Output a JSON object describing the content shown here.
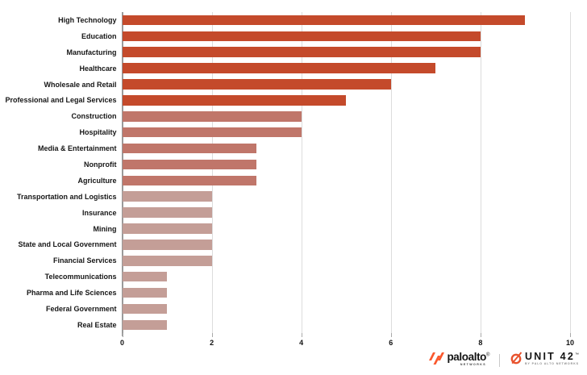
{
  "chart_data": {
    "type": "bar",
    "orientation": "horizontal",
    "title": "",
    "xlabel": "",
    "ylabel": "",
    "xlim": [
      0,
      10
    ],
    "xticks": [
      0,
      2,
      4,
      6,
      8,
      10
    ],
    "grid": true,
    "legend": "none",
    "categories": [
      "High Technology",
      "Education",
      "Manufacturing",
      "Healthcare",
      "Wholesale and Retail",
      "Professional and Legal Services",
      "Construction",
      "Hospitality",
      "Media & Entertainment",
      "Nonprofit",
      "Agriculture",
      "Transportation and Logistics",
      "Insurance",
      "Mining",
      "State and Local Government",
      "Financial Services",
      "Telecommunications",
      "Pharma and Life Sciences",
      "Federal Government",
      "Real Estate"
    ],
    "values": [
      9,
      8,
      8,
      7,
      6,
      5,
      4,
      4,
      3,
      3,
      3,
      2,
      2,
      2,
      2,
      2,
      1,
      1,
      1,
      1
    ],
    "bar_colors": [
      "#C44A2B",
      "#C44A2B",
      "#C44A2B",
      "#C44A2B",
      "#C44A2B",
      "#C44A2B",
      "#C0766A",
      "#C0766A",
      "#C0766A",
      "#C0766A",
      "#C0766A",
      "#C49E97",
      "#C49E97",
      "#C49E97",
      "#C49E97",
      "#C49E97",
      "#C49E97",
      "#C49E97",
      "#C49E97",
      "#C49E97"
    ],
    "color_tiers": {
      "high_values_5_to_9": "#C44A2B",
      "mid_values_3_to_4": "#C0766A",
      "low_values_1_to_2": "#C49E97"
    },
    "gridline_color": "#DCDCDC",
    "axis_line_color": "#9A9A9A"
  },
  "footer": {
    "paloalto": {
      "brand": "paloalto",
      "registered": "®",
      "sub": "NETWORKS"
    },
    "unit42": {
      "brand": "UNIT 42",
      "trademark": "™",
      "sub": "BY PALO ALTO NETWORKS"
    },
    "logo_orange": "#FA582D"
  }
}
